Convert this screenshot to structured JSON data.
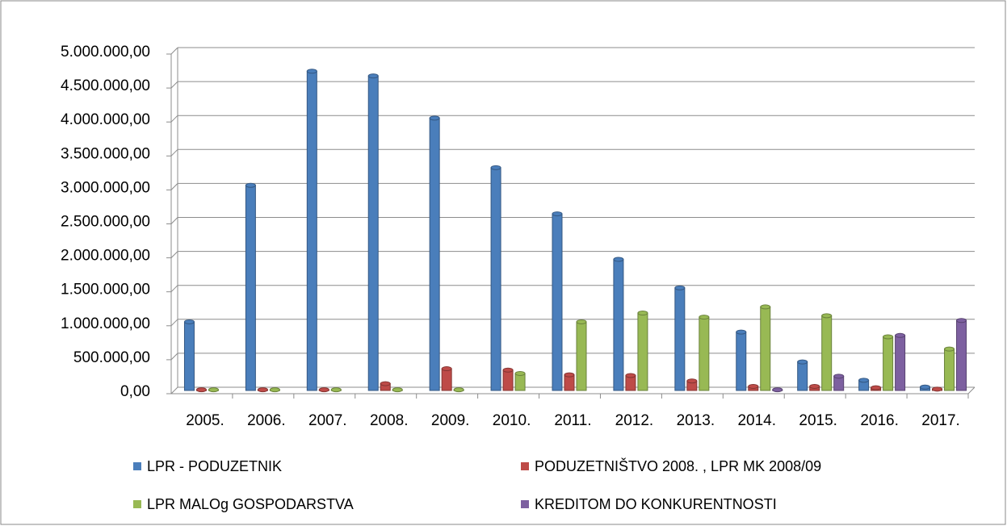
{
  "chart_data": {
    "type": "bar",
    "categories": [
      "2005.",
      "2006.",
      "2007.",
      "2008.",
      "2009.",
      "2010.",
      "2011.",
      "2012.",
      "2013.",
      "2014.",
      "2015.",
      "2016.",
      "2017."
    ],
    "series": [
      {
        "name": "LPR - PODUZETNIK",
        "color": "#4a7ebb",
        "values": [
          1010000,
          3020000,
          4700000,
          4630000,
          4010000,
          3280000,
          2600000,
          1930000,
          1510000,
          860000,
          420000,
          150000,
          50000
        ]
      },
      {
        "name": "PODUZETNIŠTVO 2008. , LPR MK 2008/09",
        "color": "#be4b48",
        "values": [
          10000,
          10000,
          10000,
          100000,
          320000,
          300000,
          230000,
          220000,
          140000,
          60000,
          60000,
          40000,
          20000
        ]
      },
      {
        "name": "LPR MALOg GOSPODARSTVA",
        "color": "#98b954",
        "values": [
          10000,
          10000,
          10000,
          10000,
          10000,
          250000,
          1010000,
          1140000,
          1080000,
          1230000,
          1100000,
          790000,
          610000
        ]
      },
      {
        "name": "KREDITOM DO KONKURENTNOSTI",
        "color": "#7d60a0",
        "values": [
          null,
          null,
          null,
          null,
          null,
          null,
          null,
          null,
          null,
          10000,
          210000,
          810000,
          1030000
        ]
      }
    ],
    "ylim": [
      0,
      5000000
    ],
    "yticks": [
      {
        "value": 0,
        "label": "0,00"
      },
      {
        "value": 500000,
        "label": "500.000,00"
      },
      {
        "value": 1000000,
        "label": "1.000.000,00"
      },
      {
        "value": 1500000,
        "label": "1.500.000,00"
      },
      {
        "value": 2000000,
        "label": "2.000.000,00"
      },
      {
        "value": 2500000,
        "label": "2.500.000,00"
      },
      {
        "value": 3000000,
        "label": "3.000.000,00"
      },
      {
        "value": 3500000,
        "label": "3.500.000,00"
      },
      {
        "value": 4000000,
        "label": "4.000.000,00"
      },
      {
        "value": 4500000,
        "label": "4.500.000,00"
      },
      {
        "value": 5000000,
        "label": "5.000.000,00"
      }
    ],
    "grid": true,
    "legend": "bottom"
  }
}
